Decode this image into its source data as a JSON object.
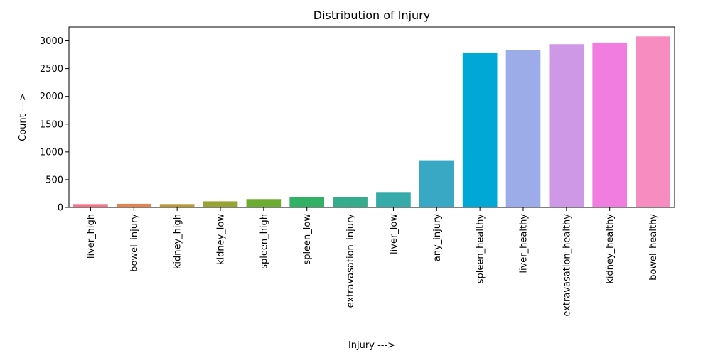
{
  "chart_data": {
    "type": "bar",
    "title": "Distribution of Injury",
    "xlabel": "Injury --->",
    "ylabel": "Count --->",
    "ylim": [
      0,
      3250
    ],
    "yticks": [
      0,
      500,
      1000,
      1500,
      2000,
      2500,
      3000
    ],
    "grid": false,
    "categories": [
      "liver_high",
      "bowel_injury",
      "kidney_high",
      "kidney_low",
      "spleen_high",
      "spleen_low",
      "extravasation_injury",
      "liver_low",
      "any_injury",
      "spleen_healthy",
      "liver_healthy",
      "extravasation_healthy",
      "kidney_healthy",
      "bowel_healthy"
    ],
    "values": [
      60,
      65,
      60,
      110,
      150,
      190,
      190,
      265,
      850,
      2790,
      2830,
      2940,
      2970,
      3080
    ],
    "colors": [
      "#f77189",
      "#e5834d",
      "#bb9832",
      "#97a431",
      "#6cac31",
      "#32b166",
      "#35ad8d",
      "#37abaa",
      "#39a8c4",
      "#00a8d6",
      "#9cace8",
      "#cf98e6",
      "#f27de0",
      "#f68cbf"
    ]
  }
}
